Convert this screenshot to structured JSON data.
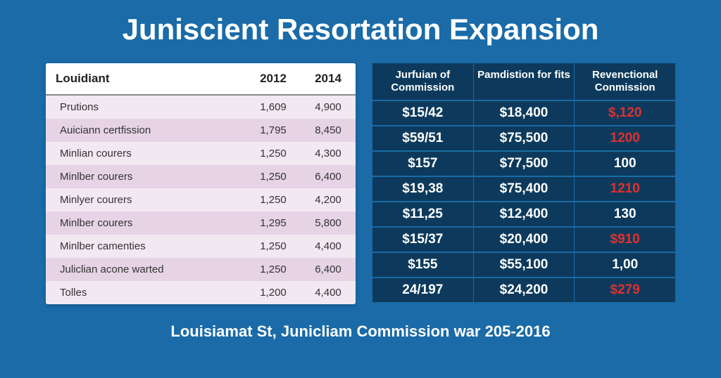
{
  "title": "Juniscient Resortation Expansion",
  "footer": "Louisiamat St, Junicliam Commission war 205-2016",
  "colors": {
    "page_bg": "#1a6ba8",
    "dark_cell": "#0d3a5c",
    "stripe_a": "#f2e8f2",
    "stripe_b": "#e6d4e6",
    "red": "#e03030",
    "white": "#ffffff"
  },
  "leftTable": {
    "header": {
      "c1": "Louidiant",
      "c2": "2012",
      "c3": "2014"
    },
    "rows": [
      {
        "c1": "Prutions",
        "c2": "1,609",
        "c3": "4,900"
      },
      {
        "c1": "Auiciann certfission",
        "c2": "1,795",
        "c3": "8,450"
      },
      {
        "c1": "Minlian courers",
        "c2": "1,250",
        "c3": "4,300"
      },
      {
        "c1": "Minlber courers",
        "c2": "1,250",
        "c3": "6,400"
      },
      {
        "c1": "Minlyer courers",
        "c2": "1,250",
        "c3": "4,200"
      },
      {
        "c1": "Minlber courers",
        "c2": "1,295",
        "c3": "5,800"
      },
      {
        "c1": "Minlber camenties",
        "c2": "1,250",
        "c3": "4,400"
      },
      {
        "c1": "Juliclian acone warted",
        "c2": "1,250",
        "c3": "6,400"
      },
      {
        "c1": "Tolles",
        "c2": "1,200",
        "c3": "4,400"
      }
    ]
  },
  "rightTable": {
    "header": {
      "h1": "Jurfuian of Commission",
      "h2": "Pamdistion for fits",
      "h3": "Revenctional Conmission"
    },
    "rows": [
      {
        "c1": "$15/42",
        "c2": "$18,400",
        "c3": "$,120",
        "c3red": true
      },
      {
        "c1": "$59/51",
        "c2": "$75,500",
        "c3": "1200",
        "c3red": true
      },
      {
        "c1": "$157",
        "c2": "$77,500",
        "c3": "100",
        "c3red": false
      },
      {
        "c1": "$19,38",
        "c2": "$75,400",
        "c3": "1210",
        "c3red": true
      },
      {
        "c1": "$11,25",
        "c2": "$12,400",
        "c3": "130",
        "c3red": false
      },
      {
        "c1": "$15/37",
        "c2": "$20,400",
        "c3": "$910",
        "c3red": true
      },
      {
        "c1": "$155",
        "c2": "$55,100",
        "c3": "1,00",
        "c3red": false
      },
      {
        "c1": "24/197",
        "c2": "$24,200",
        "c3": "$279",
        "c3red": true
      }
    ]
  }
}
